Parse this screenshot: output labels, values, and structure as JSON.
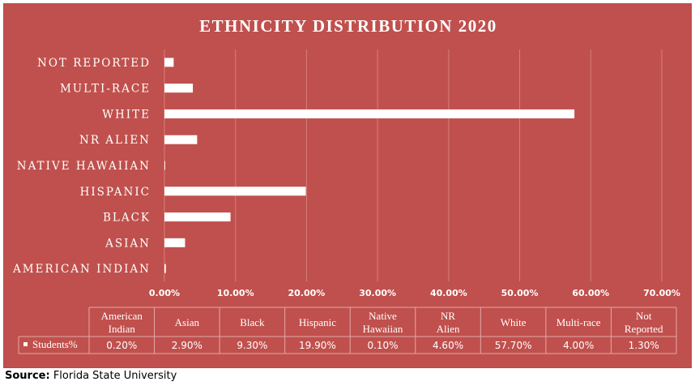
{
  "chart_data": {
    "type": "bar",
    "orientation": "horizontal",
    "title": "ETHNICITY DISTRIBUTION 2020",
    "categories": [
      "American Indian",
      "Asian",
      "Black",
      "Hispanic",
      "Native Hawaiian",
      "NR Alien",
      "White",
      "Multi-race",
      "Not Reported"
    ],
    "axis_category_labels": [
      "AMERICAN INDIAN",
      "ASIAN",
      "BLACK",
      "HISPANIC",
      "NATIVE HAWAIIAN",
      "NR ALIEN",
      "WHITE",
      "MULTI-RACE",
      "NOT REPORTED"
    ],
    "series": [
      {
        "name": "Students%",
        "values": [
          0.2,
          2.9,
          9.3,
          19.9,
          0.1,
          4.6,
          57.7,
          4.0,
          1.3
        ]
      }
    ],
    "value_labels": [
      "0.20%",
      "2.90%",
      "9.30%",
      "19.90%",
      "0.10%",
      "4.60%",
      "57.70%",
      "4.00%",
      "1.30%"
    ],
    "xlim": [
      0,
      70
    ],
    "x_ticks": [
      "0.00%",
      "10.00%",
      "20.00%",
      "30.00%",
      "40.00%",
      "50.00%",
      "60.00%",
      "70.00%"
    ],
    "grid": true,
    "legend": "data-table",
    "data_table": {
      "headers": [
        "American Indian",
        "Asian",
        "Black",
        "Hispanic",
        "Native Hawaiian",
        "NR Alien",
        "White",
        "Multi-race",
        "Not Reported"
      ],
      "row_label": "Students%"
    }
  },
  "colors": {
    "background": "#c0504d",
    "bar": "#ffffff",
    "text": "#ffffff"
  },
  "source": {
    "label": "Source:",
    "text": " Florida State University"
  }
}
